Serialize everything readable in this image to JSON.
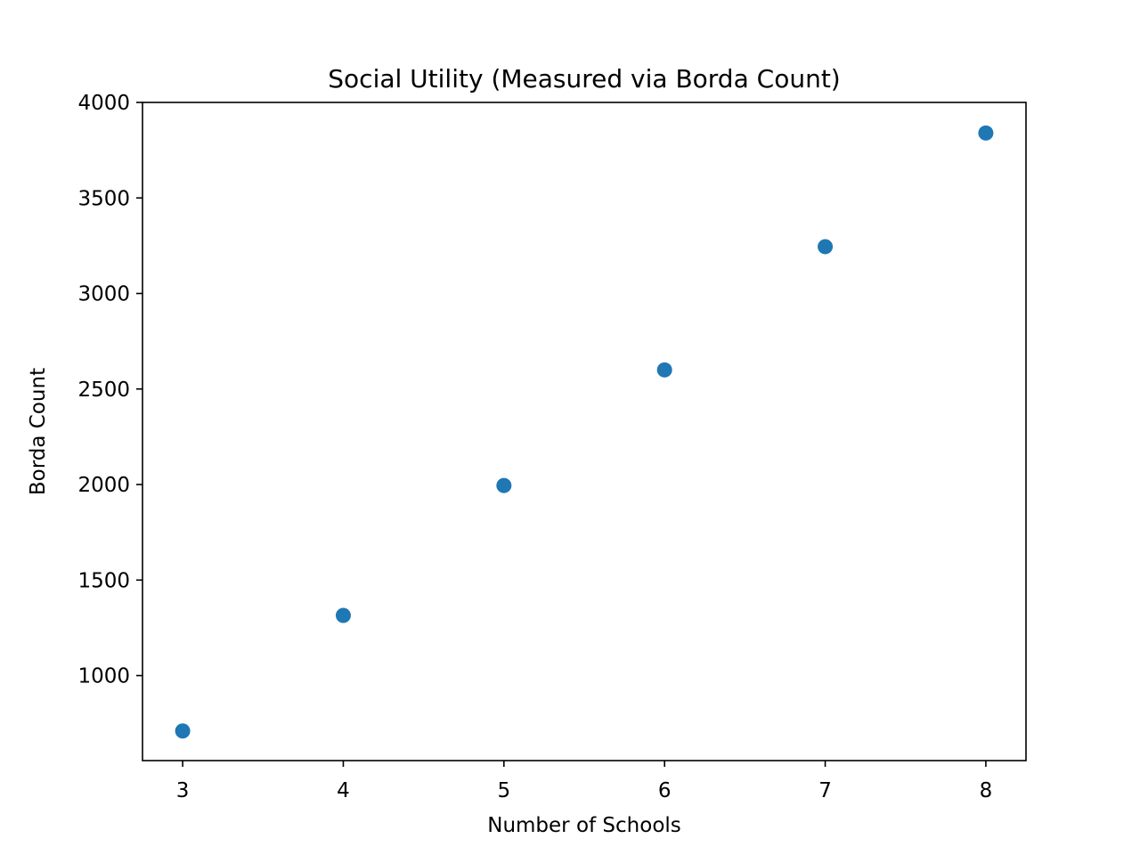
{
  "chart_data": {
    "type": "scatter",
    "title": "Social Utility (Measured via Borda Count)",
    "xlabel": "Number of Schools",
    "ylabel": "Borda Count",
    "x": [
      3,
      4,
      5,
      6,
      7,
      8
    ],
    "y": [
      710,
      1315,
      1995,
      2600,
      3245,
      3840
    ],
    "xlim": [
      2.75,
      8.25
    ],
    "ylim": [
      555,
      4000
    ],
    "xticks": [
      "3",
      "4",
      "5",
      "6",
      "7",
      "8"
    ],
    "yticks": [
      "1000",
      "1500",
      "2000",
      "2500",
      "3000",
      "3500",
      "4000"
    ],
    "grid": false,
    "marker_color": "#1f77b4"
  }
}
